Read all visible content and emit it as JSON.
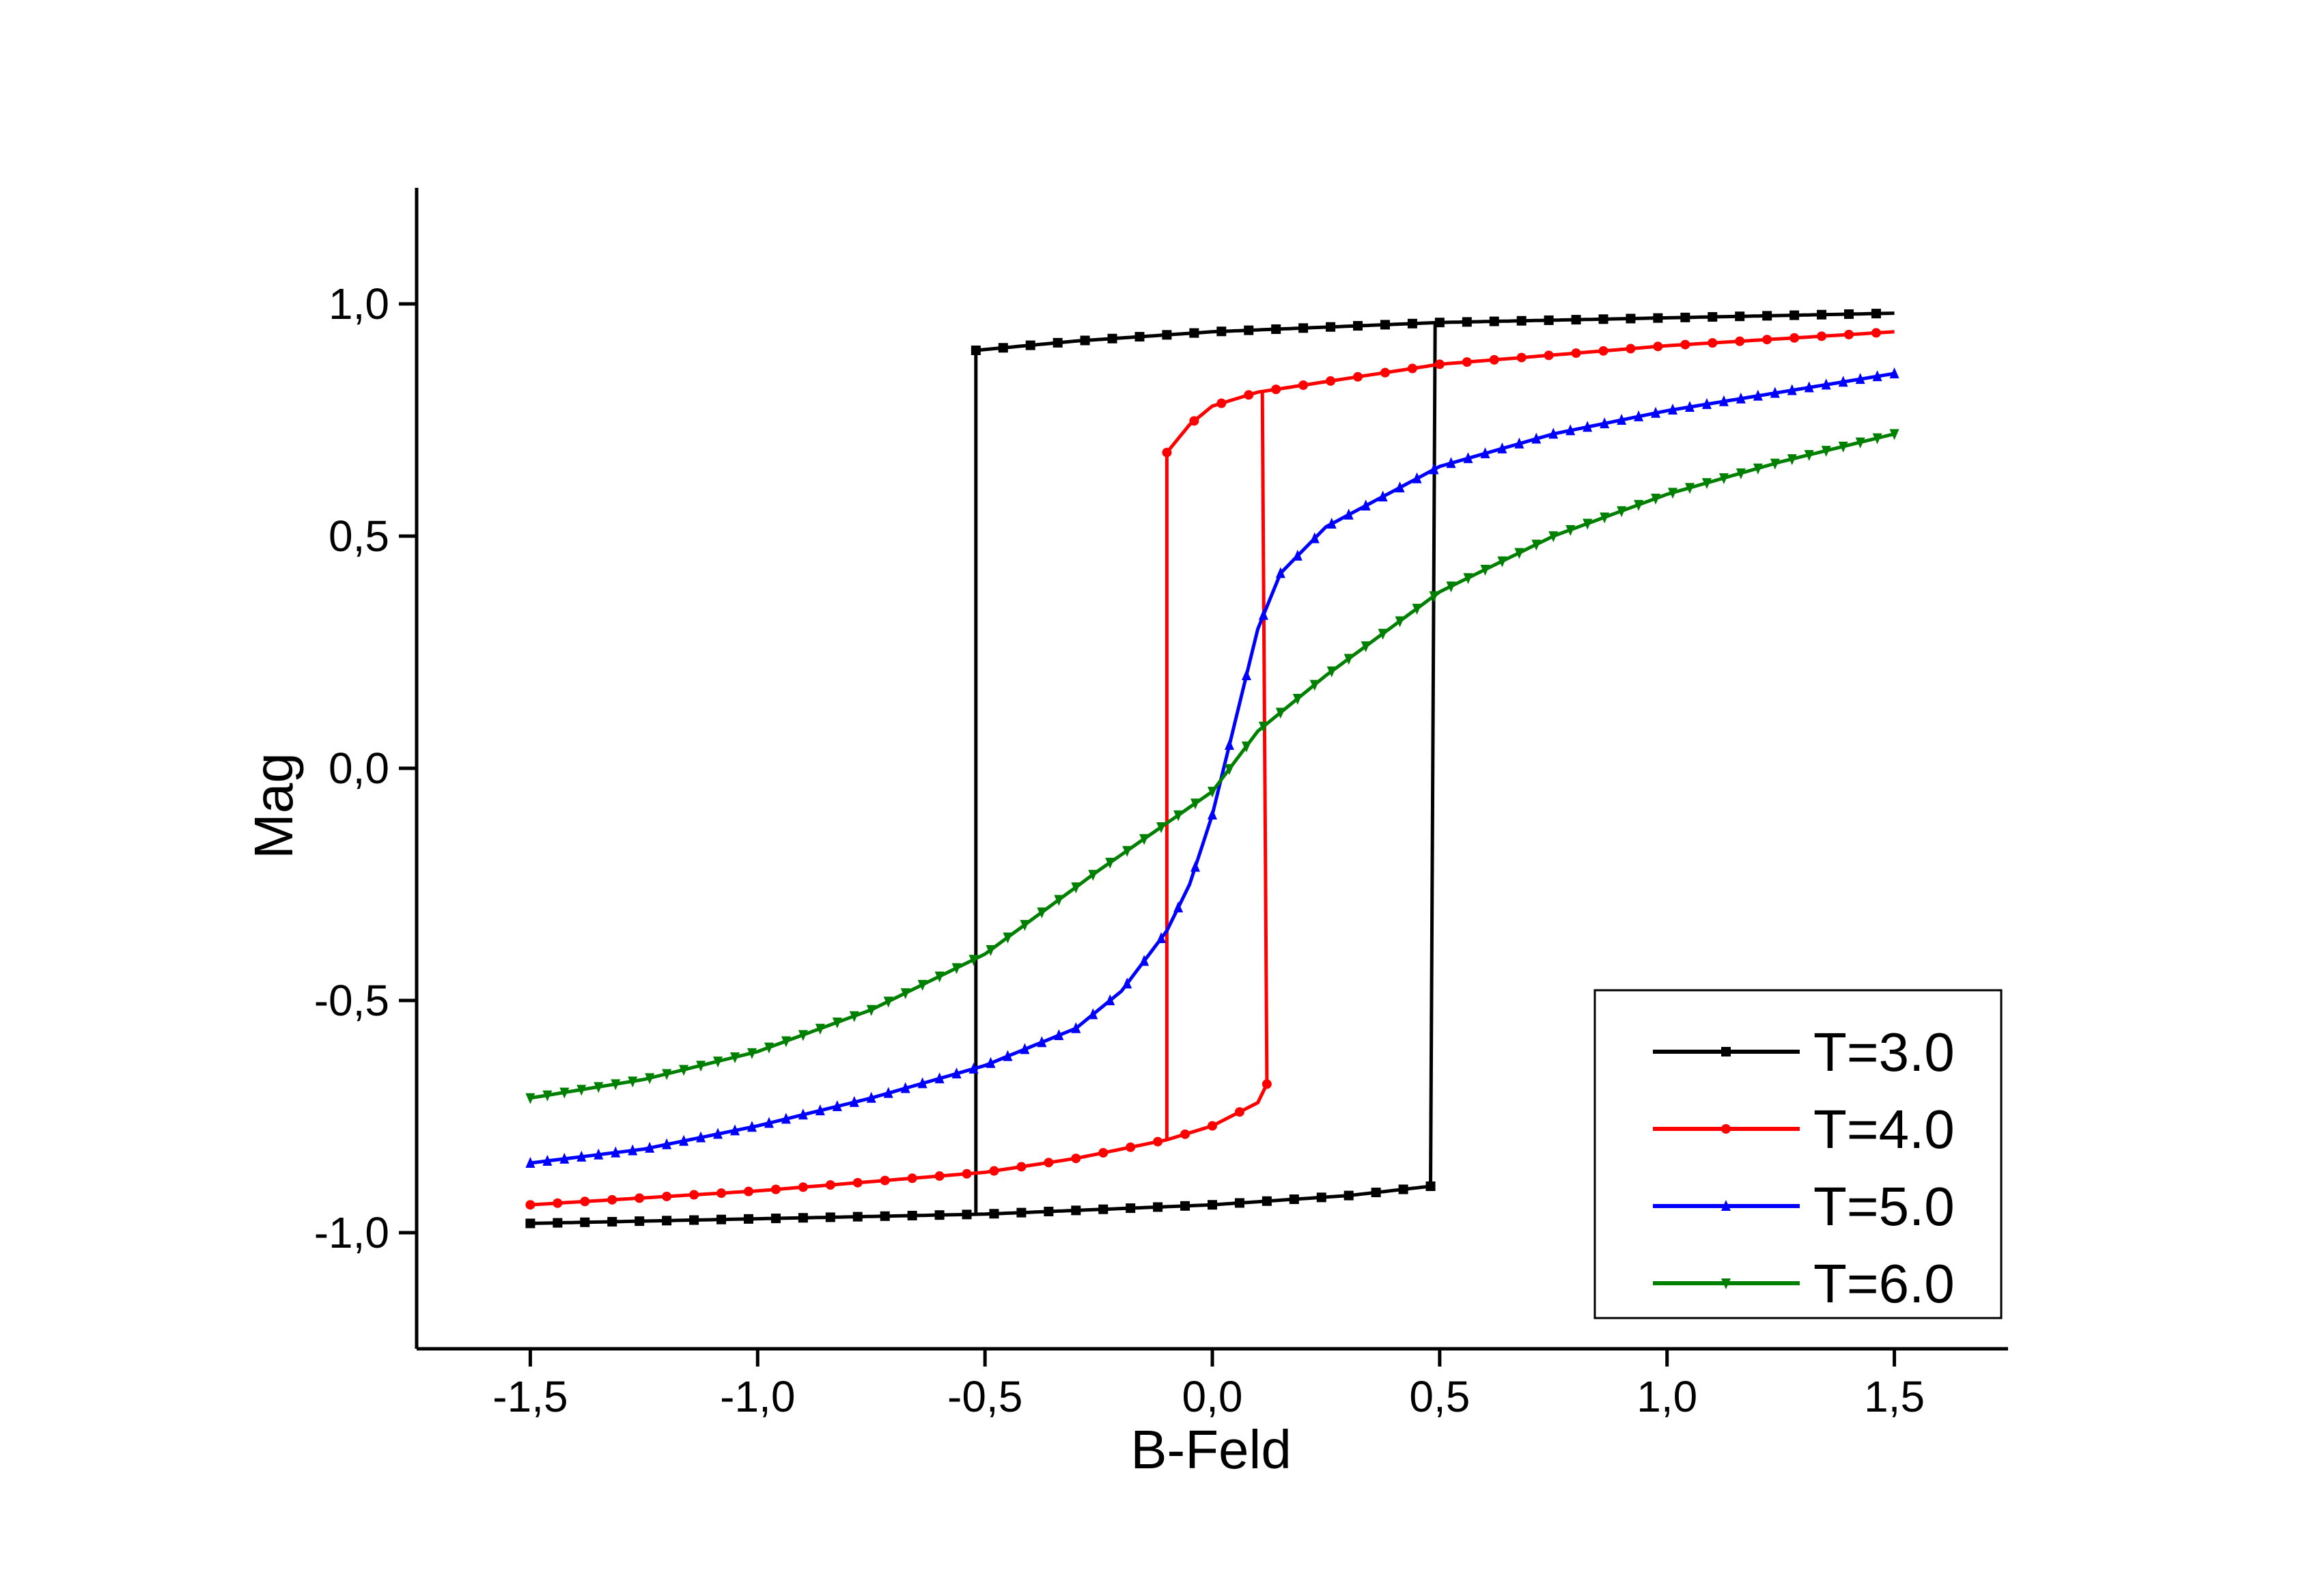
{
  "chart_data": {
    "type": "line",
    "title": "",
    "xlabel": "B-Feld",
    "ylabel": "Mag",
    "xlim": [
      -1.75,
      1.75
    ],
    "ylim": [
      -1.25,
      1.25
    ],
    "x_ticks": [
      {
        "value": -1.5,
        "label": "-1,5"
      },
      {
        "value": -1.0,
        "label": "-1,0"
      },
      {
        "value": -0.5,
        "label": "-0,5"
      },
      {
        "value": 0.0,
        "label": "0,0"
      },
      {
        "value": 0.5,
        "label": "0,5"
      },
      {
        "value": 1.0,
        "label": "1,0"
      },
      {
        "value": 1.5,
        "label": "1,5"
      }
    ],
    "y_ticks": [
      {
        "value": -1.0,
        "label": "-1,0"
      },
      {
        "value": -0.5,
        "label": "-0,5"
      },
      {
        "value": 0.0,
        "label": "0,0"
      },
      {
        "value": 0.5,
        "label": "0,5"
      },
      {
        "value": 1.0,
        "label": "1,0"
      }
    ],
    "grid": false,
    "legend_position": "bottom-right",
    "series": [
      {
        "name": "T=3.0",
        "color": "#000000",
        "marker": "square",
        "upper": [
          [
            -0.52,
            0.9
          ],
          [
            -0.3,
            0.92
          ],
          [
            0.0,
            0.94
          ],
          [
            0.5,
            0.96
          ],
          [
            1.0,
            0.97
          ],
          [
            1.5,
            0.98
          ]
        ],
        "lower": [
          [
            -1.5,
            -0.98
          ],
          [
            -1.0,
            -0.97
          ],
          [
            -0.5,
            -0.96
          ],
          [
            0.0,
            -0.94
          ],
          [
            0.3,
            -0.92
          ],
          [
            0.48,
            -0.9
          ]
        ],
        "switch_up_x": 0.49,
        "switch_down_x": -0.52
      },
      {
        "name": "T=4.0",
        "color": "#ff0000",
        "marker": "circle",
        "upper": [
          [
            -0.1,
            0.68
          ],
          [
            -0.05,
            0.74
          ],
          [
            0.0,
            0.78
          ],
          [
            0.1,
            0.81
          ],
          [
            0.3,
            0.84
          ],
          [
            0.5,
            0.87
          ],
          [
            1.0,
            0.91
          ],
          [
            1.5,
            0.94
          ]
        ],
        "lower": [
          [
            -1.5,
            -0.94
          ],
          [
            -1.0,
            -0.91
          ],
          [
            -0.5,
            -0.87
          ],
          [
            -0.3,
            -0.84
          ],
          [
            -0.1,
            -0.8
          ],
          [
            0.0,
            -0.77
          ],
          [
            0.1,
            -0.72
          ],
          [
            0.12,
            -0.68
          ]
        ],
        "switch_up_x": 0.11,
        "switch_down_x": -0.1
      },
      {
        "name": "T=5.0",
        "color": "#0000ff",
        "marker": "triangle-up",
        "points": [
          [
            -1.5,
            -0.85
          ],
          [
            -1.25,
            -0.82
          ],
          [
            -1.0,
            -0.77
          ],
          [
            -0.75,
            -0.71
          ],
          [
            -0.5,
            -0.64
          ],
          [
            -0.3,
            -0.56
          ],
          [
            -0.2,
            -0.48
          ],
          [
            -0.1,
            -0.35
          ],
          [
            -0.05,
            -0.25
          ],
          [
            0.0,
            -0.1
          ],
          [
            0.05,
            0.1
          ],
          [
            0.1,
            0.3
          ],
          [
            0.15,
            0.42
          ],
          [
            0.25,
            0.52
          ],
          [
            0.5,
            0.65
          ],
          [
            0.75,
            0.72
          ],
          [
            1.0,
            0.77
          ],
          [
            1.25,
            0.81
          ],
          [
            1.5,
            0.85
          ]
        ]
      },
      {
        "name": "T=6.0",
        "color": "#008000",
        "marker": "triangle-down",
        "points": [
          [
            -1.5,
            -0.71
          ],
          [
            -1.25,
            -0.67
          ],
          [
            -1.0,
            -0.61
          ],
          [
            -0.75,
            -0.52
          ],
          [
            -0.5,
            -0.4
          ],
          [
            -0.25,
            -0.22
          ],
          [
            0.0,
            -0.05
          ],
          [
            0.1,
            0.08
          ],
          [
            0.25,
            0.2
          ],
          [
            0.5,
            0.38
          ],
          [
            0.75,
            0.5
          ],
          [
            1.0,
            0.59
          ],
          [
            1.25,
            0.66
          ],
          [
            1.5,
            0.72
          ]
        ]
      }
    ]
  }
}
